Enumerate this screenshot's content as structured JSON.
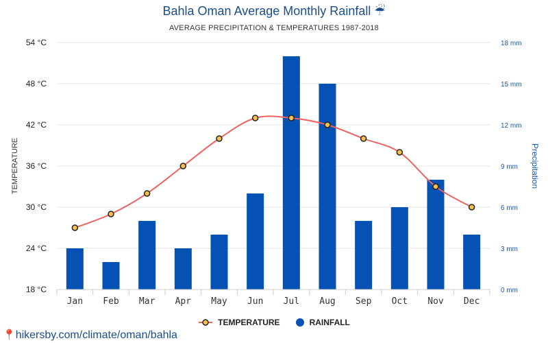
{
  "header": {
    "title": "Bahla Oman Average Monthly Rainfall ☔",
    "subtitle": "AVERAGE PRECIPITATION & TEMPERATURES 1987-2018"
  },
  "legend": {
    "temperature_label": "TEMPERATURE",
    "rainfall_label": "RAINFALL"
  },
  "footer": {
    "pin_icon": "📍",
    "url": "hikersby.com/climate/oman/bahla"
  },
  "colors": {
    "bar": "#0652b4",
    "line": "#ee6262",
    "marker_fill": "#f7c04a",
    "marker_stroke": "#222222",
    "axis_right": "#1a5aa8",
    "grid": "#e6e6e6"
  },
  "chart_data": {
    "type": "bar+line",
    "categories": [
      "Jan",
      "Feb",
      "Mar",
      "Apr",
      "May",
      "Jun",
      "Jul",
      "Aug",
      "Sep",
      "Oct",
      "Nov",
      "Dec"
    ],
    "series": [
      {
        "name": "RAINFALL",
        "type": "bar",
        "axis": "right",
        "values": [
          3,
          2,
          5,
          3,
          4,
          7,
          17,
          15,
          5,
          6,
          8,
          4
        ]
      },
      {
        "name": "TEMPERATURE",
        "type": "line",
        "axis": "left",
        "values": [
          27,
          29,
          32,
          36,
          40,
          43,
          43,
          42,
          40,
          38,
          33,
          30
        ]
      }
    ],
    "ylabel_left": "TEMPERATURE",
    "ylabel_right": "Precipitation",
    "ylim_left": [
      18,
      54
    ],
    "ylim_right": [
      0,
      18
    ],
    "yticks_left": [
      "18 °C",
      "24 °C",
      "30 °C",
      "36 °C",
      "42 °C",
      "48 °C",
      "54 °C"
    ],
    "yticks_right": [
      "0 mm",
      "3 mm",
      "6 mm",
      "9 mm",
      "12 mm",
      "15 mm",
      "18 mm"
    ],
    "grid": true,
    "legend_position": "bottom"
  }
}
